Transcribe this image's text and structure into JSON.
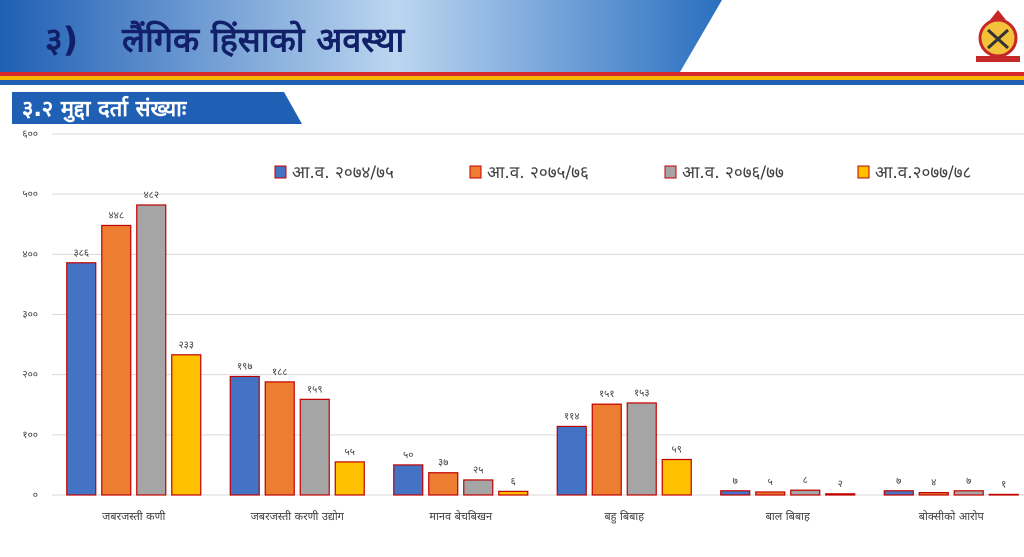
{
  "header": {
    "number": "३)",
    "title": "लैंगिक हिंसाको अवस्था"
  },
  "chart_data": {
    "type": "bar",
    "title": "३.२ मुद्दा दर्ता संख्याः",
    "categories": [
      "जबरजस्ती कणी",
      "जबरजस्ती करणी उद्योग",
      "मानव बेचबिखन",
      "बहु बिबाह",
      "बाल बिबाह",
      "बोक्सीको आरोप"
    ],
    "series": [
      {
        "name": "आ.व. २०७४/७५",
        "color": "#4472c4",
        "values": [
          386,
          197,
          50,
          114,
          7,
          7
        ],
        "value_labels": [
          "३८६",
          "१९७",
          "५०",
          "११४",
          "७",
          "७"
        ]
      },
      {
        "name": "आ.व. २०७५/७६",
        "color": "#ed7d31",
        "values": [
          448,
          188,
          37,
          151,
          5,
          4
        ],
        "value_labels": [
          "४४८",
          "१८८",
          "३७",
          "१५१",
          "५",
          "४"
        ]
      },
      {
        "name": "आ.व. २०७६/७७",
        "color": "#a5a5a5",
        "values": [
          482,
          159,
          25,
          153,
          8,
          7
        ],
        "value_labels": [
          "४८२",
          "१५९",
          "२५",
          "१५३",
          "८",
          "७"
        ]
      },
      {
        "name": "आ.व.२०७७/७८",
        "color": "#ffc000",
        "values": [
          233,
          55,
          6,
          59,
          2,
          1
        ],
        "value_labels": [
          "२३३",
          "५५",
          "६",
          "५९",
          "२",
          "१"
        ]
      }
    ],
    "ylim": [
      0,
      600
    ],
    "yticks": [
      {
        "value": 0,
        "label": "०"
      },
      {
        "value": 100,
        "label": "१००"
      },
      {
        "value": 200,
        "label": "२००"
      },
      {
        "value": 300,
        "label": "३००"
      },
      {
        "value": 400,
        "label": "४००"
      },
      {
        "value": 500,
        "label": "५००"
      },
      {
        "value": 600,
        "label": "६००"
      }
    ],
    "grid": true,
    "legend": "top-right"
  }
}
